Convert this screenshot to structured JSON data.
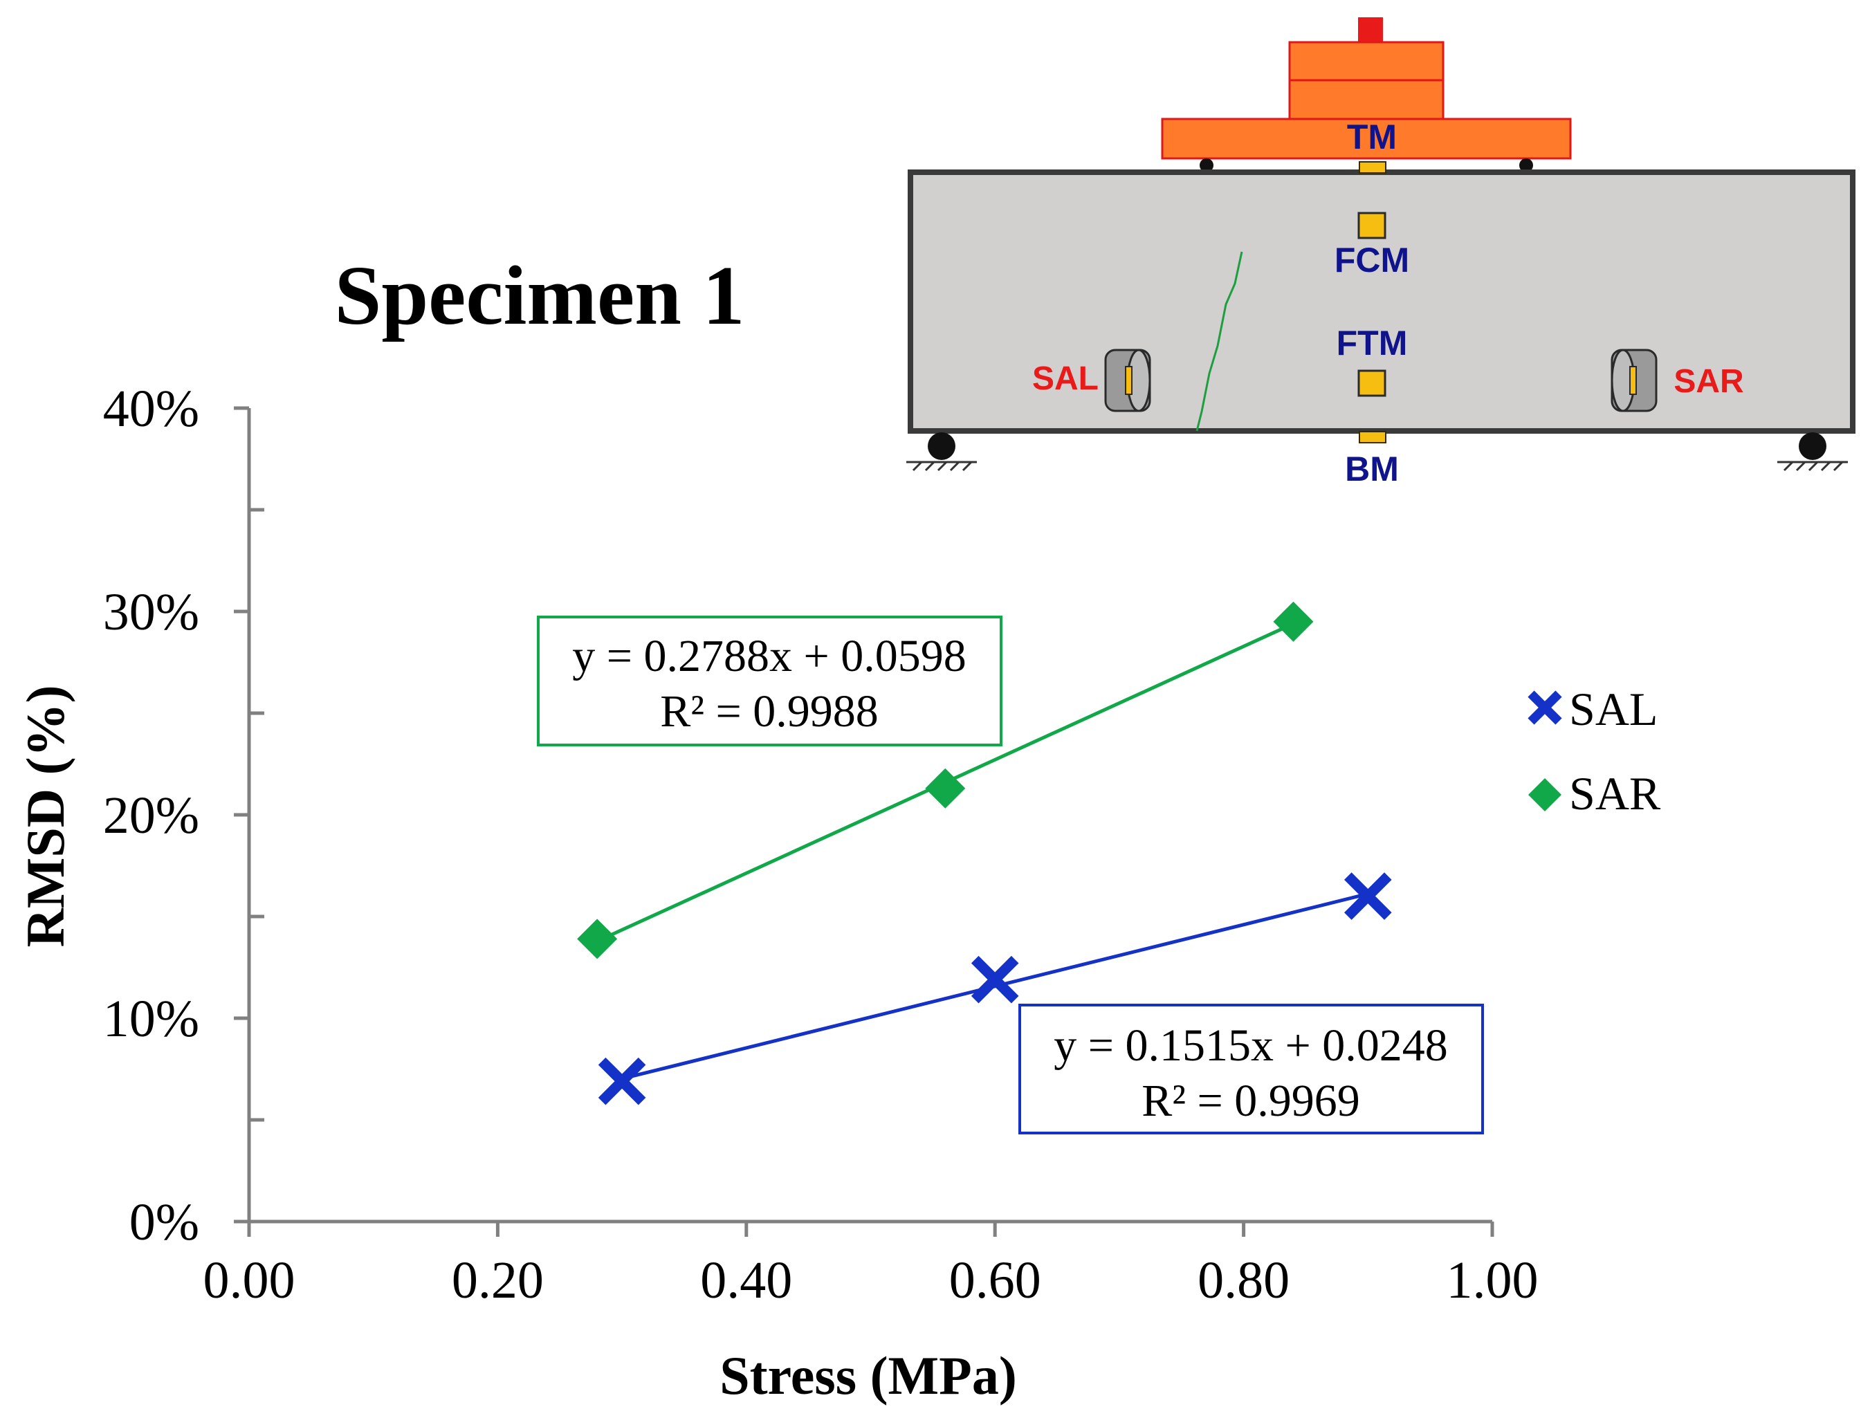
{
  "chart_data": {
    "type": "scatter",
    "title": "Specimen 1",
    "xlabel": "Stress (MPa)",
    "ylabel": "RMSD (%)",
    "xlim": [
      0,
      1.0
    ],
    "ylim": [
      0,
      0.4
    ],
    "x_ticks": [
      0,
      0.2,
      0.4,
      0.6,
      0.8,
      1.0
    ],
    "x_tick_labels": [
      "0.00",
      "0.20",
      "0.40",
      "0.60",
      "0.80",
      "1.00"
    ],
    "y_ticks": [
      0,
      0.1,
      0.2,
      0.3,
      0.4
    ],
    "y_tick_labels": [
      "0%",
      "10%",
      "20%",
      "30%",
      "40%"
    ],
    "grid": false,
    "legend_position": "right",
    "series": [
      {
        "name": "SAL",
        "marker": "x",
        "color": "#1431C8",
        "x": [
          0.3,
          0.6,
          0.9
        ],
        "y": [
          0.069,
          0.119,
          0.16
        ],
        "trendline": {
          "slope": 0.1515,
          "intercept": 0.0248,
          "equation": "y = 0.1515x + 0.0248",
          "r2": "R² = 0.9969"
        }
      },
      {
        "name": "SAR",
        "marker": "diamond",
        "color": "#11A84A",
        "x": [
          0.28,
          0.56,
          0.84
        ],
        "y": [
          0.139,
          0.213,
          0.295
        ],
        "trendline": {
          "slope": 0.2788,
          "intercept": 0.0598,
          "equation": "y = 0.2788x + 0.0598",
          "r2": "R² = 0.9988"
        }
      }
    ]
  },
  "diagram": {
    "labels": {
      "tm": "TM",
      "fcm": "FCM",
      "ftm": "FTM",
      "bm": "BM",
      "sal": "SAL",
      "sar": "SAR"
    },
    "colors": {
      "beam_fill": "#D1D0CF",
      "beam_stroke": "#3A3A3A",
      "load_fill": "#FF7A2A",
      "load_stroke": "#E01818",
      "sensor_fill": "#F7BE12",
      "label_blue": "#0F148C",
      "label_red": "#E81A1A",
      "crack": "#1E9E3E"
    }
  },
  "colors": {
    "axis": "#808080",
    "text": "#000000"
  }
}
